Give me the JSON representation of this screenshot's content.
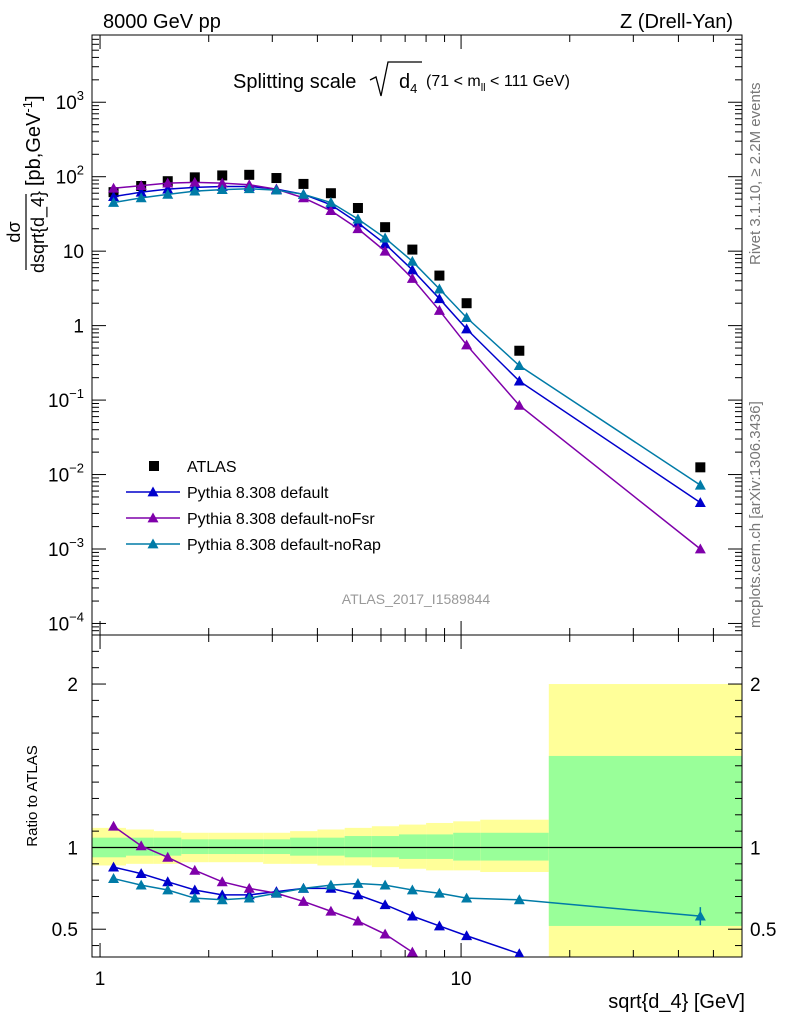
{
  "header": {
    "left": "8000 GeV pp",
    "right": "Z (Drell-Yan)"
  },
  "side_text": {
    "rivet": "Rivet 3.1.10, ≥ 2.2M events",
    "mcplots": "mcplots.cern.ch [arXiv:1306.3436]"
  },
  "analysis_id": "ATLAS_2017_I1589844",
  "colors": {
    "atlas": "#000000",
    "default": "#0000cc",
    "noFsr": "#7f00aa",
    "noRap": "#007ba7",
    "band_inner": "#99ff99",
    "band_outer": "#ffff99"
  },
  "chart_data": [
    {
      "type": "scatter",
      "panel": "main",
      "title": "Splitting scale√d₄ (71 < mₗₗ < 111 GeV)",
      "title_main": "Splitting scale",
      "title_sym": "d",
      "title_sub": "4",
      "title_range_a": "(71 < m",
      "title_range_sub": "ll",
      "title_range_b": " < 111 GeV)",
      "xlabel": "sqrt{d_4} [GeV]",
      "ylabel_num": "dσ",
      "ylabel_den": "dsqrt{d_4}",
      "ylabel_units": "[pb,GeV",
      "ylabel_units_sup": "-1",
      "ylabel_units_end": "]",
      "xscale": "log",
      "yscale": "log",
      "xlim": [
        0.95,
        60
      ],
      "ylim": [
        7e-05,
        8000
      ],
      "y_ticks": [
        {
          "value": 0.0001,
          "base": "10",
          "exp": "−4"
        },
        {
          "value": 0.001,
          "base": "10",
          "exp": "−3"
        },
        {
          "value": 0.01,
          "base": "10",
          "exp": "−2"
        },
        {
          "value": 0.1,
          "base": "10",
          "exp": "−1"
        },
        {
          "value": 1,
          "base": "1",
          "exp": ""
        },
        {
          "value": 10,
          "base": "10",
          "exp": ""
        },
        {
          "value": 100,
          "base": "10",
          "exp": "2"
        },
        {
          "value": 1000,
          "base": "10",
          "exp": "3"
        }
      ],
      "legend_position": "lower-left",
      "series": [
        {
          "name": "ATLAS",
          "key": "atlas",
          "marker": "square",
          "line": false,
          "x": [
            1.09,
            1.3,
            1.54,
            1.83,
            2.18,
            2.59,
            3.08,
            3.66,
            4.36,
            5.18,
            6.16,
            7.33,
            8.71,
            10.36,
            14.5,
            46.0
          ],
          "y": [
            62,
            75,
            87,
            98,
            104,
            106,
            96,
            80,
            60,
            38,
            21,
            10.5,
            4.7,
            2.0,
            0.46,
            0.0125
          ]
        },
        {
          "name": "Pythia 8.308 default",
          "key": "default",
          "marker": "triangle",
          "line": true,
          "x": [
            1.09,
            1.3,
            1.54,
            1.83,
            2.18,
            2.59,
            3.08,
            3.66,
            4.36,
            5.18,
            6.16,
            7.33,
            8.71,
            10.36,
            14.5,
            46.0
          ],
          "y": [
            54,
            62,
            68,
            72,
            74,
            74,
            68,
            58,
            42,
            24,
            12.5,
            5.6,
            2.3,
            0.9,
            0.18,
            0.0042
          ]
        },
        {
          "name": "Pythia 8.308 default-noFsr",
          "key": "noFsr",
          "marker": "triangle",
          "line": true,
          "x": [
            1.09,
            1.3,
            1.54,
            1.83,
            2.18,
            2.59,
            3.08,
            3.66,
            4.36,
            5.18,
            6.16,
            7.33,
            8.71,
            10.36,
            14.5,
            46.0
          ],
          "y": [
            70,
            76,
            82,
            84,
            82,
            78,
            68,
            52,
            35,
            20,
            10,
            4.3,
            1.6,
            0.55,
            0.085,
            0.001
          ]
        },
        {
          "name": "Pythia 8.308 default-noRap",
          "key": "noRap",
          "marker": "triangle",
          "line": true,
          "x": [
            1.09,
            1.3,
            1.54,
            1.83,
            2.18,
            2.59,
            3.08,
            3.66,
            4.36,
            5.18,
            6.16,
            7.33,
            8.71,
            10.36,
            14.5,
            46.0
          ],
          "y": [
            45,
            52,
            58,
            64,
            67,
            69,
            66,
            58,
            45,
            27,
            15,
            7.3,
            3.1,
            1.28,
            0.29,
            0.0072
          ]
        }
      ]
    },
    {
      "type": "line",
      "panel": "ratio",
      "ylabel": "Ratio to ATLAS",
      "xscale": "log",
      "xlim": [
        0.95,
        60
      ],
      "ylim": [
        0.33,
        2.3
      ],
      "y_ticks": [
        0.5,
        1,
        2
      ],
      "x_ticks": [
        1,
        10
      ],
      "reference_line": 1,
      "bands": {
        "edges": [
          0.95,
          1.18,
          1.41,
          1.68,
          2.0,
          2.38,
          2.83,
          3.36,
          4.0,
          4.76,
          5.66,
          6.73,
          8.0,
          9.51,
          11.3,
          17.5,
          60
        ],
        "inner_lo": [
          0.94,
          0.95,
          0.95,
          0.96,
          0.96,
          0.96,
          0.96,
          0.95,
          0.95,
          0.94,
          0.94,
          0.93,
          0.93,
          0.92,
          0.92,
          0.52
        ],
        "inner_hi": [
          1.06,
          1.06,
          1.06,
          1.05,
          1.05,
          1.05,
          1.05,
          1.06,
          1.06,
          1.07,
          1.07,
          1.08,
          1.08,
          1.09,
          1.09,
          1.56
        ],
        "outer_lo": [
          0.89,
          0.9,
          0.9,
          0.91,
          0.91,
          0.91,
          0.9,
          0.9,
          0.89,
          0.89,
          0.88,
          0.87,
          0.86,
          0.86,
          0.85,
          0.3
        ],
        "outer_hi": [
          1.12,
          1.11,
          1.1,
          1.09,
          1.09,
          1.09,
          1.09,
          1.1,
          1.11,
          1.12,
          1.13,
          1.14,
          1.15,
          1.16,
          1.17,
          2.0
        ]
      },
      "series": [
        {
          "name": "Pythia 8.308 default",
          "key": "default",
          "x": [
            1.09,
            1.3,
            1.54,
            1.83,
            2.18,
            2.59,
            3.08,
            3.66,
            4.36,
            5.18,
            6.16,
            7.33,
            8.71,
            10.36,
            14.5
          ],
          "y": [
            0.88,
            0.84,
            0.79,
            0.74,
            0.71,
            0.71,
            0.73,
            0.75,
            0.75,
            0.71,
            0.65,
            0.58,
            0.52,
            0.46,
            0.35
          ]
        },
        {
          "name": "Pythia 8.308 default-noFsr",
          "key": "noFsr",
          "x": [
            1.09,
            1.3,
            1.54,
            1.83,
            2.18,
            2.59,
            3.08,
            3.66,
            4.36,
            5.18,
            6.16,
            7.33
          ],
          "y": [
            1.13,
            1.01,
            0.94,
            0.86,
            0.79,
            0.75,
            0.72,
            0.67,
            0.61,
            0.55,
            0.47,
            0.36
          ]
        },
        {
          "name": "Pythia 8.308 default-noRap",
          "key": "noRap",
          "x": [
            1.09,
            1.3,
            1.54,
            1.83,
            2.18,
            2.59,
            3.08,
            3.66,
            4.36,
            5.18,
            6.16,
            7.33,
            8.71,
            10.36,
            14.5,
            46.0
          ],
          "y": [
            0.81,
            0.77,
            0.74,
            0.69,
            0.68,
            0.69,
            0.72,
            0.75,
            0.77,
            0.78,
            0.77,
            0.74,
            0.72,
            0.69,
            0.68,
            0.58
          ]
        }
      ]
    }
  ]
}
